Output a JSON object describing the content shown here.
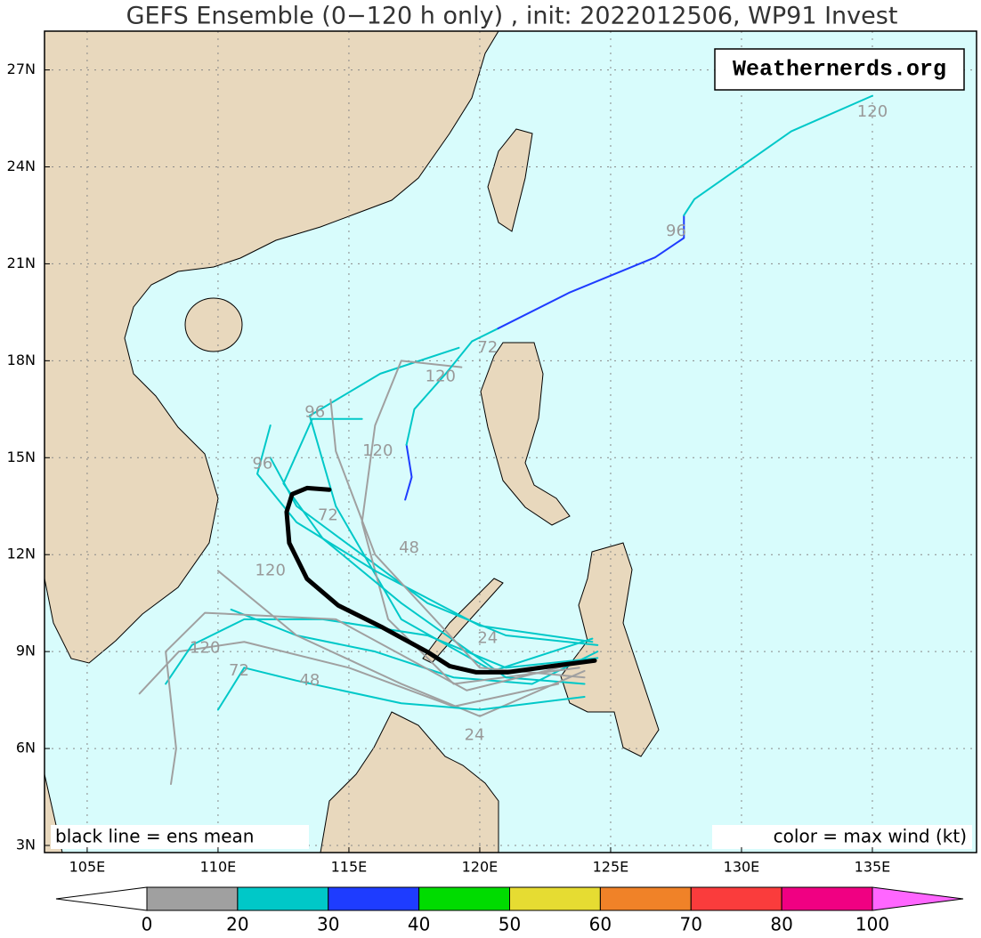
{
  "title": "GEFS Ensemble (0−120 h only) , init: 2022012506, WP91 Invest",
  "watermark": "Weathernerds.org",
  "note_left": "black line = ens mean",
  "note_right": "color = max wind (kt)",
  "map": {
    "lon_range": [
      103.37,
      138.98
    ],
    "lat_range": [
      2.78,
      28.2
    ],
    "lon_ticks": [
      {
        "value": 105,
        "label": "105E"
      },
      {
        "value": 110,
        "label": "110E"
      },
      {
        "value": 115,
        "label": "115E"
      },
      {
        "value": 120,
        "label": "120E"
      },
      {
        "value": 125,
        "label": "125E"
      },
      {
        "value": 130,
        "label": "130E"
      },
      {
        "value": 135,
        "label": "135E"
      }
    ],
    "lat_ticks": [
      {
        "value": 3,
        "label": "3N"
      },
      {
        "value": 6,
        "label": "6N"
      },
      {
        "value": 9,
        "label": "9N"
      },
      {
        "value": 12,
        "label": "12N"
      },
      {
        "value": 15,
        "label": "15N"
      },
      {
        "value": 18,
        "label": "18N"
      },
      {
        "value": 21,
        "label": "21N"
      },
      {
        "value": 24,
        "label": "24N"
      },
      {
        "value": 27,
        "label": "27N"
      }
    ]
  },
  "tracks": [
    {
      "color": "#00c8c8",
      "lon": [
        124.5,
        122,
        119,
        116,
        113,
        110.5
      ],
      "lat": [
        9.0,
        8.0,
        8.2,
        9.0,
        9.5,
        10.3
      ]
    },
    {
      "color": "#00c8c8",
      "lon": [
        124.5,
        121,
        118,
        115.5,
        113,
        112
      ],
      "lat": [
        9.2,
        9.5,
        10.5,
        12,
        13.5,
        15
      ]
    },
    {
      "color": "#a0a0a0",
      "lon": [
        123,
        119,
        115,
        111,
        108.5,
        107
      ],
      "lat": [
        8,
        7.3,
        8.5,
        9.3,
        9.0,
        7.7
      ]
    },
    {
      "color": "#00c8c8",
      "lon": [
        124.3,
        120.5,
        117,
        114.5,
        113.5,
        116.2,
        119.2
      ],
      "lat": [
        9.4,
        8.4,
        10,
        13.5,
        16.3,
        17.6,
        18.4
      ]
    },
    {
      "color": "#a0a0a0",
      "lon": [
        123.8,
        119,
        116.5,
        115.5,
        116,
        117,
        119.3
      ],
      "lat": [
        8.5,
        8.0,
        10,
        13,
        16,
        18,
        17.8
      ]
    },
    {
      "color": "#00c8c8",
      "lon": [
        124,
        121,
        117,
        114,
        112.5,
        113.6,
        115.5
      ],
      "lat": [
        8.0,
        8.2,
        10.5,
        12.5,
        14.2,
        16.2,
        16.2
      ]
    },
    {
      "color": "#00c8c8",
      "lon": [
        124.5,
        121,
        118,
        114,
        111,
        109,
        108
      ],
      "lat": [
        8.8,
        8.5,
        9.5,
        10,
        10,
        9.2,
        8.0
      ]
    },
    {
      "color": "#a0a0a0",
      "lon": [
        124,
        120,
        117,
        113,
        110
      ],
      "lat": [
        8.4,
        7.0,
        8,
        9.5,
        11.5
      ]
    },
    {
      "color": "#00c8c8",
      "lon": [
        124.3,
        120,
        116,
        113,
        111.5,
        112
      ],
      "lat": [
        9.3,
        9.8,
        11.5,
        13,
        14.5,
        16
      ]
    },
    {
      "color": "#a0a0a0",
      "lon": [
        123.5,
        119.5,
        114.5,
        109.5,
        108,
        108.4,
        108.2
      ],
      "lat": [
        8.6,
        7.8,
        10.0,
        10.2,
        9.0,
        6.0,
        4.9
      ]
    },
    {
      "color": "#00c8c8",
      "lon": [
        124,
        120,
        117,
        113,
        111,
        110
      ],
      "lat": [
        7.6,
        7.2,
        7.4,
        8.1,
        8.5,
        7.2
      ]
    },
    {
      "color": "#a0a0a0",
      "lon": [
        124,
        120,
        116,
        114.5,
        114.3
      ],
      "lat": [
        8.2,
        8.5,
        12,
        15.2,
        16.8
      ]
    },
    {
      "color": "#1e3cff",
      "lon": [
        117.15,
        117.4,
        117.2
      ],
      "lat": [
        13.7,
        14.4,
        15.4
      ]
    },
    {
      "color": "#00c8c8",
      "lon": [
        117.2,
        117.5,
        118.7,
        119.7,
        120.7
      ],
      "lat": [
        15.4,
        16.5,
        17.6,
        18.6,
        19.0
      ]
    },
    {
      "color": "#1e3cff",
      "lon": [
        120.7,
        123.4,
        126.7,
        127.8,
        127.8
      ],
      "lat": [
        19.0,
        20.1,
        21.2,
        21.8,
        22.5
      ]
    },
    {
      "color": "#00c8c8",
      "lon": [
        127.8,
        128.2,
        131.9,
        135.0
      ],
      "lat": [
        22.5,
        23.0,
        25.1,
        26.2
      ]
    },
    {
      "color": "#000000",
      "mean": true,
      "lon": [
        114.25,
        113.4,
        112.83,
        112.62,
        112.72,
        113.4,
        114.59,
        116.3,
        118.0,
        118.85,
        119.87,
        121.06,
        122.76,
        124.39
      ],
      "lat": [
        14.01,
        14.06,
        13.87,
        13.32,
        12.36,
        11.25,
        10.43,
        9.74,
        8.99,
        8.55,
        8.36,
        8.36,
        8.55,
        8.72
      ]
    }
  ],
  "track_labels": [
    {
      "text": "120",
      "lon": 135.0,
      "lat": 25.7
    },
    {
      "text": "96",
      "lon": 127.5,
      "lat": 22.0
    },
    {
      "text": "72",
      "lon": 120.3,
      "lat": 18.4
    },
    {
      "text": "120",
      "lon": 118.5,
      "lat": 17.5
    },
    {
      "text": "120",
      "lon": 116.1,
      "lat": 15.2
    },
    {
      "text": "96",
      "lon": 113.7,
      "lat": 16.4
    },
    {
      "text": "96",
      "lon": 111.7,
      "lat": 14.8
    },
    {
      "text": "72",
      "lon": 114.2,
      "lat": 13.2
    },
    {
      "text": "48",
      "lon": 117.3,
      "lat": 12.2
    },
    {
      "text": "120",
      "lon": 112.0,
      "lat": 11.5
    },
    {
      "text": "24",
      "lon": 120.3,
      "lat": 9.4
    },
    {
      "text": "120",
      "lon": 109.5,
      "lat": 9.1
    },
    {
      "text": "72",
      "lon": 110.8,
      "lat": 8.4
    },
    {
      "text": "48",
      "lon": 113.5,
      "lat": 8.1
    },
    {
      "text": "24",
      "lon": 119.8,
      "lat": 6.4
    }
  ],
  "colorbar": {
    "bounds": [
      0,
      20,
      30,
      40,
      50,
      60,
      70,
      80,
      100
    ],
    "colors": [
      "#a0a0a0",
      "#00c8c8",
      "#1e3cff",
      "#00dc00",
      "#e6dc32",
      "#f08228",
      "#fa3c3c",
      "#f00082"
    ],
    "under_color": "#ffffff",
    "over_color": "#ff66ff"
  }
}
